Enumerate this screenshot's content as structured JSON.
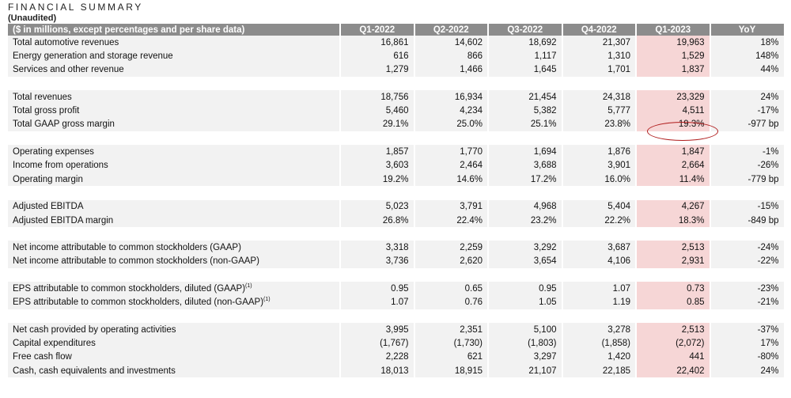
{
  "header": {
    "title": "FINANCIAL SUMMARY",
    "subtitle": "(Unaudited)"
  },
  "columns": [
    "($ in millions, except percentages and per share data)",
    "Q1-2022",
    "Q2-2022",
    "Q3-2022",
    "Q4-2022",
    "Q1-2023",
    "YoY"
  ],
  "rows": [
    {
      "label": "Total automotive revenues",
      "values": [
        "16,861",
        "14,602",
        "18,692",
        "21,307",
        "19,963",
        "18%"
      ]
    },
    {
      "label": "Energy generation and storage revenue",
      "values": [
        "616",
        "866",
        "1,117",
        "1,310",
        "1,529",
        "148%"
      ]
    },
    {
      "label": "Services and other revenue",
      "values": [
        "1,279",
        "1,466",
        "1,645",
        "1,701",
        "1,837",
        "44%"
      ]
    },
    {
      "label": "Total revenues",
      "values": [
        "18,756",
        "16,934",
        "21,454",
        "24,318",
        "23,329",
        "24%"
      ]
    },
    {
      "label": "Total gross profit",
      "values": [
        "5,460",
        "4,234",
        "5,382",
        "5,777",
        "4,511",
        "-17%"
      ]
    },
    {
      "label": "Total GAAP gross margin",
      "values": [
        "29.1%",
        "25.0%",
        "25.1%",
        "23.8%",
        "19.3%",
        "-977 bp"
      ]
    },
    {
      "label": "Operating expenses",
      "values": [
        "1,857",
        "1,770",
        "1,694",
        "1,876",
        "1,847",
        "-1%"
      ]
    },
    {
      "label": "Income from operations",
      "values": [
        "3,603",
        "2,464",
        "3,688",
        "3,901",
        "2,664",
        "-26%"
      ]
    },
    {
      "label": "Operating margin",
      "values": [
        "19.2%",
        "14.6%",
        "17.2%",
        "16.0%",
        "11.4%",
        "-779 bp"
      ]
    },
    {
      "label": "Adjusted EBITDA",
      "values": [
        "5,023",
        "3,791",
        "4,968",
        "5,404",
        "4,267",
        "-15%"
      ]
    },
    {
      "label": "Adjusted EBITDA margin",
      "values": [
        "26.8%",
        "22.4%",
        "23.2%",
        "22.2%",
        "18.3%",
        "-849 bp"
      ]
    },
    {
      "label": "Net income attributable to common stockholders (GAAP)",
      "values": [
        "3,318",
        "2,259",
        "3,292",
        "3,687",
        "2,513",
        "-24%"
      ]
    },
    {
      "label": "Net income attributable to common stockholders (non-GAAP)",
      "values": [
        "3,736",
        "2,620",
        "3,654",
        "4,106",
        "2,931",
        "-22%"
      ]
    },
    {
      "label": "EPS attributable to common stockholders, diluted (GAAP)",
      "sup": "(1)",
      "values": [
        "0.95",
        "0.65",
        "0.95",
        "1.07",
        "0.73",
        "-23%"
      ]
    },
    {
      "label": "EPS attributable to common stockholders, diluted (non-GAAP)",
      "sup": "(1)",
      "values": [
        "1.07",
        "0.76",
        "1.05",
        "1.19",
        "0.85",
        "-21%"
      ]
    },
    {
      "label": "Net cash provided by operating activities",
      "values": [
        "3,995",
        "2,351",
        "5,100",
        "3,278",
        "2,513",
        "-37%"
      ]
    },
    {
      "label": "Capital expenditures",
      "values": [
        "(1,767)",
        "(1,730)",
        "(1,803)",
        "(1,858)",
        "(2,072)",
        "17%"
      ]
    },
    {
      "label": "Free cash flow",
      "values": [
        "2,228",
        "621",
        "3,297",
        "1,420",
        "441",
        "-80%"
      ]
    },
    {
      "label": "Cash, cash equivalents and investments",
      "values": [
        "18,013",
        "18,915",
        "21,107",
        "22,185",
        "22,402",
        "24%"
      ]
    }
  ],
  "groups": [
    [
      0,
      1,
      2
    ],
    [
      3,
      4,
      5
    ],
    [
      6,
      7,
      8
    ],
    [
      9,
      10
    ],
    [
      11,
      12
    ],
    [
      13,
      14
    ],
    [
      15,
      16,
      17,
      18
    ]
  ],
  "highlight": {
    "row": 5,
    "column": "Q1-2023",
    "color": "#b01c1c"
  },
  "colors": {
    "header_bg": "#8c8c8c",
    "row_bg": "#f2f2f2",
    "q1_2023_bg": "#f6d6d6"
  }
}
